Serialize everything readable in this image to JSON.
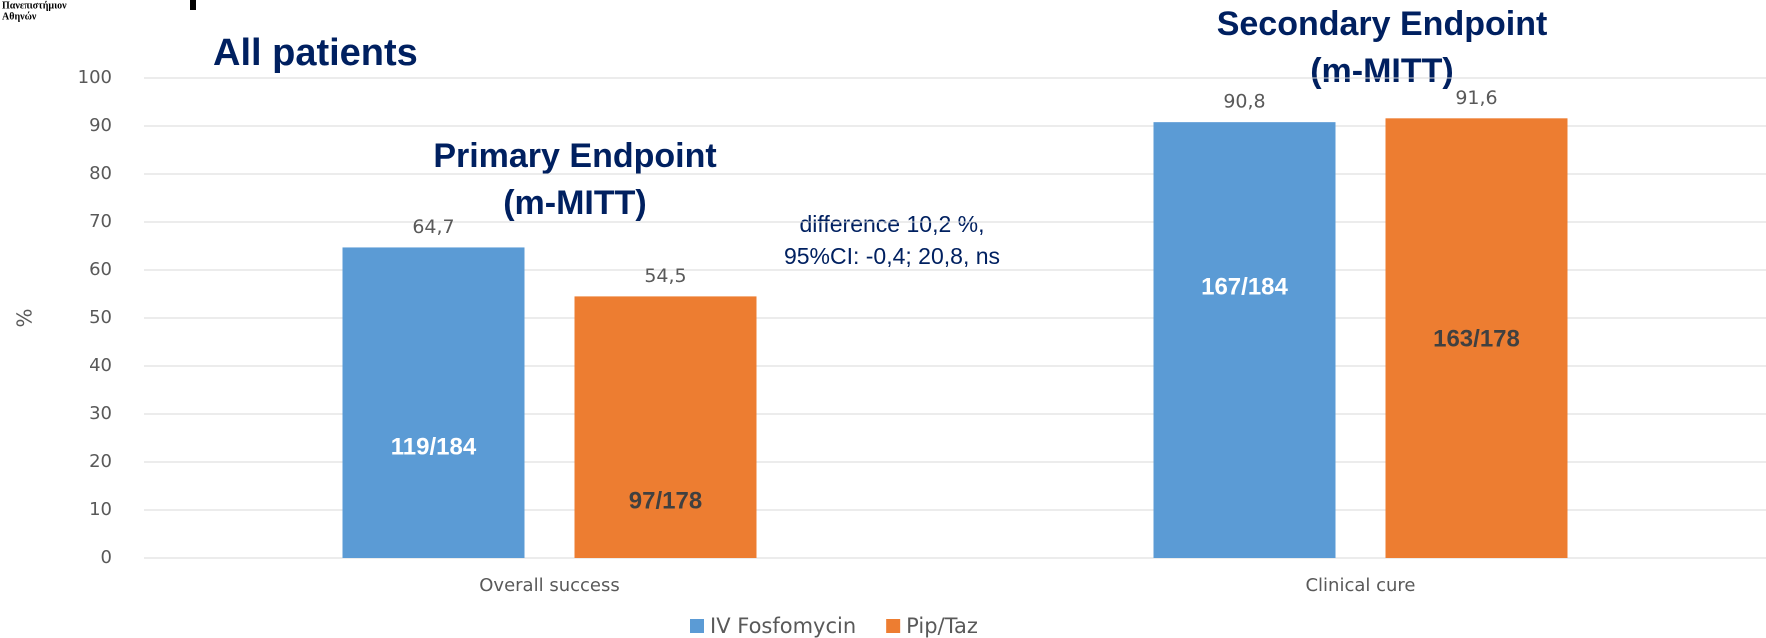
{
  "logo_text": [
    "Πανεπιστήμιον",
    "Αθηνών"
  ],
  "chart_data": {
    "type": "bar",
    "title": "All patients",
    "ylabel": "%",
    "categories": [
      "Overall success",
      "Clinical cure"
    ],
    "series": [
      {
        "name": "IV Fosfomycin",
        "color": "#5b9bd5",
        "values": [
          64.7,
          90.8
        ],
        "value_labels": [
          "64,7",
          "90,8"
        ],
        "bar_labels": [
          "119/184",
          "167/184"
        ],
        "bar_label_color": "#ffffff"
      },
      {
        "name": "Pip/Taz",
        "color": "#ed7d31",
        "values": [
          54.5,
          91.6
        ],
        "value_labels": [
          "54,5",
          "91,6"
        ],
        "bar_labels": [
          "97/178",
          "163/178"
        ],
        "bar_label_color": "#404040"
      }
    ],
    "annotations": [
      [
        "Primary Endpoint",
        "(m-MITT)"
      ],
      [
        "Secondary Endpoint",
        "(m-MITT)"
      ],
      [
        "difference 10,2 %,",
        "95%CI: -0,4; 20,8,  ns"
      ]
    ],
    "ylim": [
      0,
      100
    ],
    "yticks": [
      0,
      10,
      20,
      30,
      40,
      50,
      60,
      70,
      80,
      90,
      100
    ],
    "grid": true,
    "legend": "bottom"
  }
}
